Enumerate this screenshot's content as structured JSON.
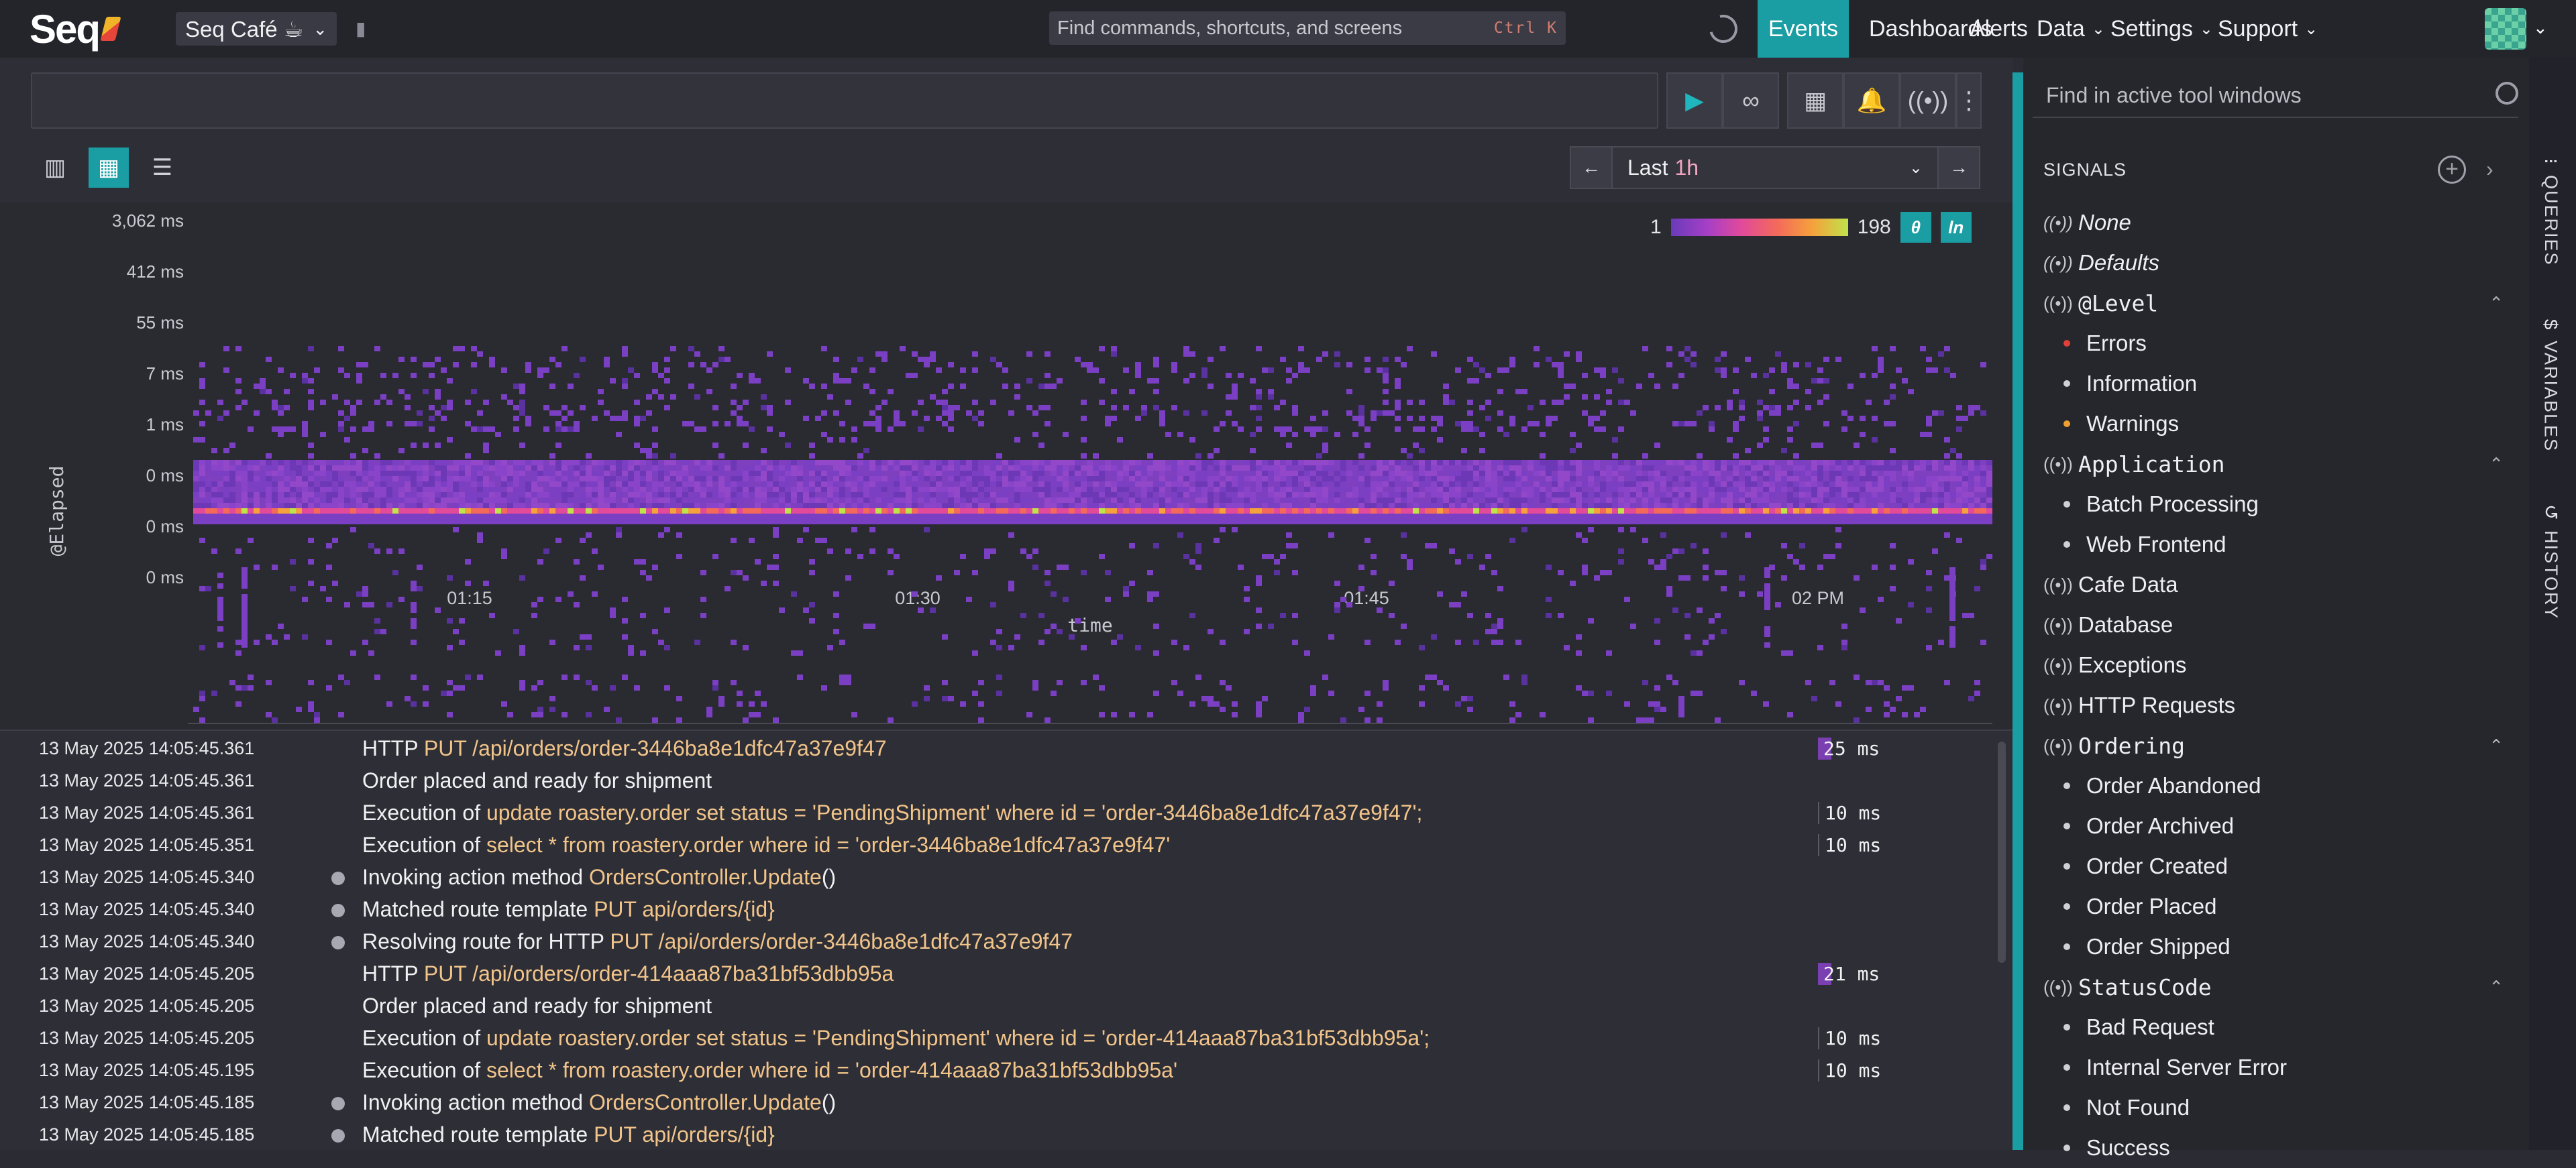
{
  "brand": {
    "name": "Seq"
  },
  "workspace": {
    "label": "Seq Café ☕"
  },
  "command": {
    "placeholder": "Find commands, shortcuts, and screens",
    "shortcut": "Ctrl K"
  },
  "nav": [
    {
      "label": "Events",
      "active": true
    },
    {
      "label": "Dashboards"
    },
    {
      "label": "Alerts"
    },
    {
      "label": "Data",
      "dropdown": true
    },
    {
      "label": "Settings",
      "dropdown": true
    },
    {
      "label": "Support",
      "dropdown": true
    }
  ],
  "toolbar": {
    "icons": [
      "run-icon",
      "refresh-link-icon",
      "add-to-dashboard-icon",
      "add-alert-icon",
      "signal-icon",
      "more-vertical-icon"
    ]
  },
  "views": {
    "icons": [
      "bar-chart-icon",
      "heatmap-icon",
      "list-icon"
    ],
    "active": 1
  },
  "range": {
    "prefix": "Last",
    "value": "1h"
  },
  "chart": {
    "scale_min": "1",
    "scale_max": "198",
    "toggle_a": "θ",
    "toggle_b": "ln",
    "accent": "#1a9da3"
  },
  "chart_data": {
    "type": "heatmap",
    "ylabel": "@Elapsed",
    "xlabel": "time",
    "y_ticks": [
      "3,062 ms",
      "412 ms",
      "55 ms",
      "7 ms",
      "1 ms",
      "0 ms",
      "0 ms",
      "0 ms"
    ],
    "x_ticks": [
      "01:15",
      "01:30",
      "01:45",
      "02 PM"
    ],
    "count_range": [
      1,
      198
    ],
    "color_scale": [
      "#6a3bb8",
      "#a43fc7",
      "#e24a9a",
      "#f46a5a",
      "#f5a23c",
      "#bfe34a"
    ]
  },
  "events": [
    {
      "ts": "13 May 2025  14:05:45.361",
      "parts": [
        [
          "HTTP ",
          ""
        ],
        [
          "PUT /api/orders/order-3446ba8e1dfc47a37e9f47",
          "t"
        ]
      ],
      "dur": "25 ms",
      "hot": true
    },
    {
      "ts": "13 May 2025  14:05:45.361",
      "parts": [
        [
          "Order placed and ready for shipment",
          ""
        ]
      ]
    },
    {
      "ts": "13 May 2025  14:05:45.361",
      "parts": [
        [
          "Execution of ",
          ""
        ],
        [
          "update roastery.order set status = 'PendingShipment' where id = 'order-3446ba8e1dfc47a37e9f47';",
          "t"
        ]
      ],
      "dur": "10 ms"
    },
    {
      "ts": "13 May 2025  14:05:45.351",
      "parts": [
        [
          "Execution of ",
          ""
        ],
        [
          "select * from roastery.order where id = 'order-3446ba8e1dfc47a37e9f47'",
          "t"
        ]
      ],
      "dur": "10 ms"
    },
    {
      "ts": "13 May 2025  14:05:45.340",
      "dot": true,
      "parts": [
        [
          "Invoking action method ",
          ""
        ],
        [
          "OrdersController.Update",
          "t"
        ],
        [
          "()",
          ""
        ]
      ]
    },
    {
      "ts": "13 May 2025  14:05:45.340",
      "dot": true,
      "parts": [
        [
          "Matched route template ",
          ""
        ],
        [
          "PUT api/orders/{id}",
          "t"
        ]
      ]
    },
    {
      "ts": "13 May 2025  14:05:45.340",
      "dot": true,
      "parts": [
        [
          "Resolving route for HTTP ",
          ""
        ],
        [
          "PUT /api/orders/order-3446ba8e1dfc47a37e9f47",
          "t"
        ]
      ]
    },
    {
      "ts": "13 May 2025  14:05:45.205",
      "parts": [
        [
          "HTTP ",
          ""
        ],
        [
          "PUT /api/orders/order-414aaa87ba31bf53dbb95a",
          "t"
        ]
      ],
      "dur": "21 ms",
      "hot": true
    },
    {
      "ts": "13 May 2025  14:05:45.205",
      "parts": [
        [
          "Order placed and ready for shipment",
          ""
        ]
      ]
    },
    {
      "ts": "13 May 2025  14:05:45.205",
      "parts": [
        [
          "Execution of ",
          ""
        ],
        [
          "update roastery.order set status = 'PendingShipment' where id = 'order-414aaa87ba31bf53dbb95a';",
          "t"
        ]
      ],
      "dur": "10 ms"
    },
    {
      "ts": "13 May 2025  14:05:45.195",
      "parts": [
        [
          "Execution of ",
          ""
        ],
        [
          "select * from roastery.order where id = 'order-414aaa87ba31bf53dbb95a'",
          "t"
        ]
      ],
      "dur": "10 ms"
    },
    {
      "ts": "13 May 2025  14:05:45.185",
      "dot": true,
      "parts": [
        [
          "Invoking action method ",
          ""
        ],
        [
          "OrdersController.Update",
          "t"
        ],
        [
          "()",
          ""
        ]
      ]
    },
    {
      "ts": "13 May 2025  14:05:45.185",
      "dot": true,
      "parts": [
        [
          "Matched route template ",
          ""
        ],
        [
          "PUT api/orders/{id}",
          "t"
        ]
      ]
    }
  ],
  "find": {
    "placeholder": "Find in active tool windows"
  },
  "signals": {
    "title": "SIGNALS",
    "items": [
      {
        "label": "None",
        "kind": "signal",
        "italic": true
      },
      {
        "label": "Defaults",
        "kind": "signal",
        "italic": true
      },
      {
        "label": "@Level",
        "kind": "group",
        "mono": true
      },
      {
        "label": "Errors",
        "kind": "sub",
        "color": "#e0403a"
      },
      {
        "label": "Information",
        "kind": "sub",
        "color": "#cfcfd6"
      },
      {
        "label": "Warnings",
        "kind": "sub",
        "color": "#f0a030"
      },
      {
        "label": "Application",
        "kind": "group",
        "mono": true
      },
      {
        "label": "Batch Processing",
        "kind": "sub",
        "color": "#cfcfd6"
      },
      {
        "label": "Web Frontend",
        "kind": "sub",
        "color": "#cfcfd6"
      },
      {
        "label": "Cafe Data",
        "kind": "signal"
      },
      {
        "label": "Database",
        "kind": "signal"
      },
      {
        "label": "Exceptions",
        "kind": "signal"
      },
      {
        "label": "HTTP Requests",
        "kind": "signal"
      },
      {
        "label": "Ordering",
        "kind": "group",
        "mono": true
      },
      {
        "label": "Order Abandoned",
        "kind": "sub",
        "color": "#cfcfd6"
      },
      {
        "label": "Order Archived",
        "kind": "sub",
        "color": "#cfcfd6"
      },
      {
        "label": "Order Created",
        "kind": "sub",
        "color": "#cfcfd6"
      },
      {
        "label": "Order Placed",
        "kind": "sub",
        "color": "#cfcfd6"
      },
      {
        "label": "Order Shipped",
        "kind": "sub",
        "color": "#cfcfd6"
      },
      {
        "label": "StatusCode",
        "kind": "group",
        "mono": true
      },
      {
        "label": "Bad Request",
        "kind": "sub",
        "color": "#cfcfd6"
      },
      {
        "label": "Internal Server Error",
        "kind": "sub",
        "color": "#cfcfd6"
      },
      {
        "label": "Not Found",
        "kind": "sub",
        "color": "#cfcfd6"
      },
      {
        "label": "Success",
        "kind": "sub",
        "color": "#cfcfd6"
      }
    ]
  },
  "side_tabs": [
    {
      "label": "QUERIES",
      "icon": "⁝"
    },
    {
      "label": "VARIABLES",
      "icon": "$"
    },
    {
      "label": "HISTORY",
      "icon": "↺"
    }
  ]
}
